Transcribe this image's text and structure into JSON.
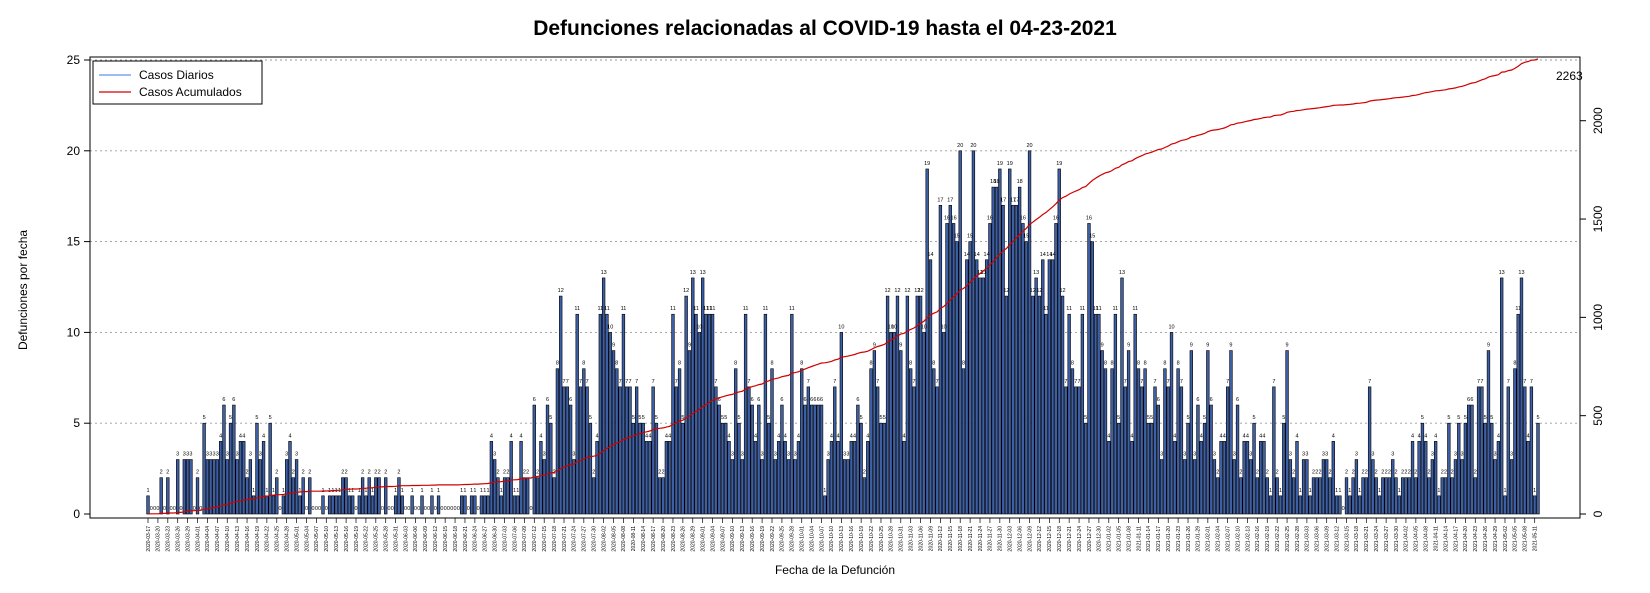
{
  "chart_data": {
    "type": "bar",
    "title": "Defunciones relacionadas al COVID-19 hasta el 04-23-2021",
    "xlabel": "Fecha de la Defunción",
    "ylabel": "Defunciones por fecha",
    "ylim": [
      0,
      25
    ],
    "y2lim": [
      0,
      2263
    ],
    "yticks": [
      "0",
      "5",
      "10",
      "15",
      "20",
      "25"
    ],
    "y2ticks": [
      "0",
      "500",
      "1000",
      "1500",
      "2000"
    ],
    "grid": true,
    "legend_position": "top-left",
    "x_start": "2020-03-17",
    "x_end": "2021-04-23",
    "tick_step_days": 3,
    "final_cumulative_label": "2263",
    "colors": {
      "bar_fill": "#3d5fa6",
      "bar_stroke": "#000000",
      "daily_line": "#6495ed",
      "cumulative_line": "#d00000",
      "grid": "#9a9a9a"
    },
    "series": [
      {
        "name": "Casos Diarios",
        "type": "bar",
        "values": [
          1,
          0,
          0,
          0,
          2,
          0,
          2,
          0,
          0,
          3,
          0,
          3,
          3,
          3,
          0,
          2,
          0,
          5,
          3,
          3,
          3,
          3,
          4,
          6,
          3,
          5,
          6,
          3,
          4,
          4,
          2,
          3,
          1,
          5,
          3,
          4,
          1,
          5,
          1,
          2,
          0,
          1,
          3,
          4,
          2,
          3,
          1,
          2,
          0,
          2,
          0,
          0,
          0,
          1,
          0,
          1,
          1,
          1,
          1,
          2,
          2,
          1,
          1,
          0,
          1,
          2,
          1,
          2,
          1,
          2,
          2,
          0,
          2,
          0,
          0,
          1,
          2,
          1,
          0,
          0,
          1,
          0,
          0,
          1,
          0,
          0,
          1,
          0,
          1,
          0,
          0,
          0,
          0,
          0,
          0,
          1,
          1,
          0,
          1,
          1,
          0,
          1,
          1,
          1,
          4,
          3,
          2,
          1,
          2,
          2,
          4,
          1,
          1,
          4,
          2,
          2,
          0,
          6,
          2,
          4,
          3,
          6,
          5,
          2,
          8,
          12,
          7,
          7,
          6,
          3,
          11,
          7,
          8,
          7,
          5,
          2,
          4,
          11,
          13,
          11,
          10,
          9,
          8,
          7,
          11,
          7,
          7,
          5,
          7,
          5,
          5,
          4,
          4,
          7,
          5,
          2,
          2,
          4,
          4,
          11,
          7,
          8,
          5,
          12,
          9,
          13,
          11,
          10,
          13,
          11,
          11,
          11,
          7,
          6,
          5,
          5,
          4,
          3,
          8,
          5,
          3,
          11,
          7,
          6,
          4,
          6,
          3,
          11,
          5,
          8,
          3,
          4,
          6,
          4,
          3,
          11,
          3,
          4,
          8,
          6,
          7,
          6,
          6,
          6,
          6,
          1,
          3,
          4,
          7,
          4,
          10,
          3,
          3,
          4,
          4,
          6,
          5,
          2,
          4,
          8,
          9,
          7,
          5,
          5,
          12,
          10,
          10,
          12,
          9,
          4,
          12,
          8,
          7,
          12,
          12,
          10,
          19,
          14,
          8,
          7,
          17,
          10,
          16,
          17,
          16,
          15,
          20,
          8,
          14,
          15,
          20,
          14,
          13,
          13,
          14,
          16,
          18,
          18,
          19,
          17,
          12,
          19,
          17,
          17,
          18,
          16,
          15,
          20,
          12,
          13,
          12,
          14,
          11,
          14,
          14,
          16,
          19,
          12,
          7,
          11,
          8,
          7,
          7,
          11,
          5,
          16,
          15,
          11,
          11,
          9,
          8,
          4,
          8,
          11,
          5,
          13,
          7,
          9,
          4,
          11,
          8,
          7,
          8,
          5,
          5,
          7,
          6,
          3,
          8,
          7,
          10,
          4,
          8,
          7,
          3,
          5,
          9,
          3,
          6,
          4,
          5,
          9,
          6,
          3,
          2,
          4,
          4,
          7,
          9,
          3,
          6,
          2,
          4,
          4,
          3,
          5,
          2,
          4,
          4,
          2,
          1,
          7,
          2,
          1,
          5,
          9,
          3,
          2,
          4,
          1,
          3,
          3,
          1,
          2,
          2,
          2,
          3,
          3,
          2,
          4,
          1,
          1,
          0,
          2,
          1,
          2,
          3,
          1,
          2,
          2,
          7,
          3,
          2,
          1,
          2,
          2,
          2,
          3,
          2,
          1,
          2,
          2,
          2,
          4,
          2,
          4,
          5,
          4,
          2,
          3,
          4,
          1,
          2,
          2,
          5,
          2,
          3,
          5,
          3,
          5,
          6,
          6,
          2,
          7,
          7,
          5,
          9,
          5,
          3,
          4,
          13,
          1,
          7,
          3,
          8,
          11,
          13,
          7,
          4,
          7,
          1,
          5
        ]
      },
      {
        "name": "Casos Acumulados",
        "type": "line",
        "axis": "right"
      }
    ]
  }
}
